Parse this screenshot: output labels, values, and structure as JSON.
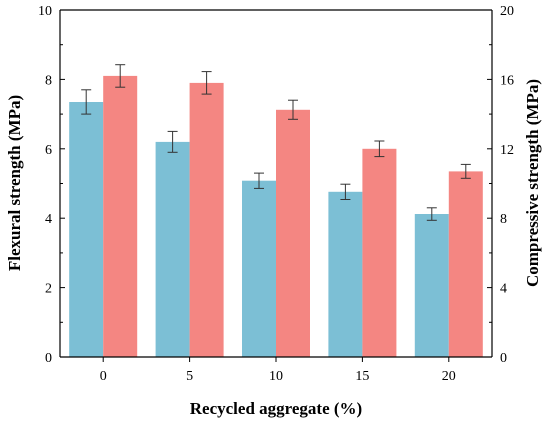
{
  "chart_data": {
    "type": "bar",
    "categories": [
      "0",
      "5",
      "10",
      "15",
      "20"
    ],
    "xlabel": "Recycled aggregate (%)",
    "series": [
      {
        "name": "Flexural strength",
        "axis": "left",
        "color": "#7cbfd5",
        "values": [
          7.35,
          6.2,
          5.08,
          4.76,
          4.12
        ],
        "errors": [
          0.35,
          0.3,
          0.22,
          0.22,
          0.18
        ]
      },
      {
        "name": "Compressive strength",
        "axis": "right",
        "color": "#f48682",
        "values": [
          16.2,
          15.8,
          14.25,
          12.0,
          10.7
        ],
        "errors": [
          0.65,
          0.65,
          0.55,
          0.45,
          0.4
        ]
      }
    ],
    "y_left": {
      "label": "Flexural strength (MPa)",
      "ylim": [
        0,
        10
      ],
      "ticks": [
        "0",
        "2",
        "4",
        "6",
        "8",
        "10"
      ],
      "color": "#3fa3c6"
    },
    "y_right": {
      "label": "Compressive strength (MPa)",
      "ylim": [
        0,
        20
      ],
      "ticks": [
        "0",
        "4",
        "8",
        "12",
        "16",
        "20"
      ],
      "color": "#d77a6e"
    },
    "grid": false,
    "legend": "none"
  }
}
